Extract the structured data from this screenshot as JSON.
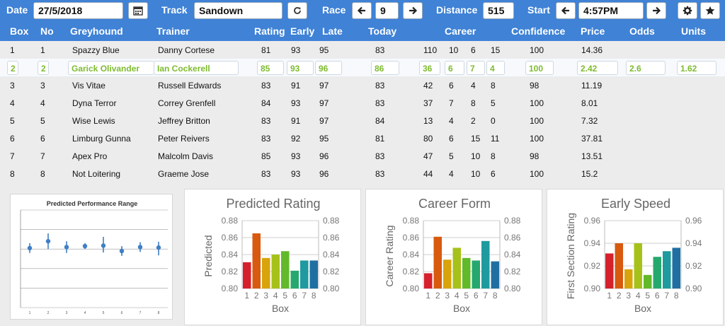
{
  "toolbar": {
    "date_label": "Date",
    "date_value": "27/5/2018",
    "track_label": "Track",
    "track_value": "Sandown",
    "race_label": "Race",
    "race_value": "9",
    "distance_label": "Distance",
    "distance_value": "515",
    "start_label": "Start",
    "start_value": "4:57PM"
  },
  "columns": [
    "Box",
    "No",
    "Greyhound",
    "Trainer",
    "Rating",
    "Early",
    "Late",
    "Today",
    "Career",
    "Confidence",
    "Price",
    "Odds",
    "Units"
  ],
  "rows": [
    {
      "box": "1",
      "no": "1",
      "dog": "Spazzy Blue",
      "trainer": "Danny Cortese",
      "rating": "81",
      "early": "93",
      "late": "95",
      "today": "83",
      "c1": "110",
      "c2": "10",
      "c3": "6",
      "c4": "15",
      "conf": "100",
      "price": "14.36",
      "odds": "",
      "units": ""
    },
    {
      "box": "2",
      "no": "2",
      "dog": "Garick Olivander",
      "trainer": "Ian Cockerell",
      "rating": "85",
      "early": "93",
      "late": "96",
      "today": "86",
      "c1": "36",
      "c2": "6",
      "c3": "7",
      "c4": "4",
      "conf": "100",
      "price": "2.42",
      "odds": "2.6",
      "units": "1.62"
    },
    {
      "box": "3",
      "no": "3",
      "dog": "Vis Vitae",
      "trainer": "Russell Edwards",
      "rating": "83",
      "early": "91",
      "late": "97",
      "today": "83",
      "c1": "42",
      "c2": "6",
      "c3": "4",
      "c4": "8",
      "conf": "98",
      "price": "11.19",
      "odds": "",
      "units": ""
    },
    {
      "box": "4",
      "no": "4",
      "dog": "Dyna Terror",
      "trainer": "Correy Grenfell",
      "rating": "84",
      "early": "93",
      "late": "97",
      "today": "83",
      "c1": "37",
      "c2": "7",
      "c3": "8",
      "c4": "5",
      "conf": "100",
      "price": "8.01",
      "odds": "",
      "units": ""
    },
    {
      "box": "5",
      "no": "5",
      "dog": "Wise Lewis",
      "trainer": "Jeffrey Britton",
      "rating": "83",
      "early": "91",
      "late": "97",
      "today": "84",
      "c1": "13",
      "c2": "4",
      "c3": "2",
      "c4": "0",
      "conf": "100",
      "price": "7.32",
      "odds": "",
      "units": ""
    },
    {
      "box": "6",
      "no": "6",
      "dog": "Limburg Gunna",
      "trainer": "Peter Reivers",
      "rating": "83",
      "early": "92",
      "late": "95",
      "today": "81",
      "c1": "80",
      "c2": "6",
      "c3": "15",
      "c4": "11",
      "conf": "100",
      "price": "37.81",
      "odds": "",
      "units": ""
    },
    {
      "box": "7",
      "no": "7",
      "dog": "Apex Pro",
      "trainer": "Malcolm Davis",
      "rating": "85",
      "early": "93",
      "late": "96",
      "today": "83",
      "c1": "47",
      "c2": "5",
      "c3": "10",
      "c4": "8",
      "conf": "98",
      "price": "13.51",
      "odds": "",
      "units": ""
    },
    {
      "box": "8",
      "no": "8",
      "dog": "Not Loitering",
      "trainer": "Graeme Jose",
      "rating": "83",
      "early": "93",
      "late": "96",
      "today": "83",
      "c1": "44",
      "c2": "4",
      "c3": "10",
      "c4": "6",
      "conf": "100",
      "price": "15.2",
      "odds": "",
      "units": ""
    }
  ],
  "selected_row": 1,
  "colors": {
    "accent": "#3f82d6",
    "selected_text": "#7dbb2e"
  },
  "icons": {
    "calendar": "calendar-icon",
    "refresh": "refresh-icon",
    "prev": "arrow-left-icon",
    "next": "arrow-right-icon",
    "settings": "gear-icon",
    "favorite": "star-icon"
  },
  "chart_data": [
    {
      "type": "scatter",
      "title": "Predicted Performance Range",
      "categories": [
        "1",
        "2",
        "3",
        "4",
        "5",
        "6",
        "7",
        "8"
      ],
      "values": [
        0.61,
        0.68,
        0.62,
        0.63,
        0.635,
        0.58,
        0.62,
        0.615
      ],
      "err_low": [
        0.05,
        0.08,
        0.06,
        0.03,
        0.07,
        0.05,
        0.05,
        0.08
      ],
      "err_high": [
        0.05,
        0.08,
        0.06,
        0.03,
        0.09,
        0.05,
        0.05,
        0.06
      ],
      "ylim": [
        0,
        1
      ],
      "grid": true
    },
    {
      "type": "bar",
      "title": "Predicted Rating",
      "xlabel": "Box",
      "ylabel": "Predicted",
      "categories": [
        "1",
        "2",
        "3",
        "4",
        "5",
        "6",
        "7",
        "8"
      ],
      "values": [
        0.831,
        0.865,
        0.836,
        0.84,
        0.844,
        0.821,
        0.833,
        0.833
      ],
      "ylim": [
        0.8,
        0.88
      ],
      "ticks": [
        "0.80",
        "0.82",
        "0.84",
        "0.86",
        "0.88"
      ]
    },
    {
      "type": "bar",
      "title": "Career Form",
      "xlabel": "Box",
      "ylabel": "Career Rating",
      "categories": [
        "1",
        "2",
        "3",
        "4",
        "5",
        "6",
        "7",
        "8"
      ],
      "values": [
        0.818,
        0.861,
        0.834,
        0.848,
        0.836,
        0.833,
        0.856,
        0.832
      ],
      "ylim": [
        0.8,
        0.88
      ],
      "ticks": [
        "0.80",
        "0.82",
        "0.84",
        "0.86",
        "0.88"
      ]
    },
    {
      "type": "bar",
      "title": "Early Speed",
      "xlabel": "Box",
      "ylabel": "First Section Rating",
      "categories": [
        "1",
        "2",
        "3",
        "4",
        "5",
        "6",
        "7",
        "8"
      ],
      "values": [
        0.931,
        0.94,
        0.917,
        0.94,
        0.912,
        0.928,
        0.933,
        0.936
      ],
      "ylim": [
        0.9,
        0.96
      ],
      "ticks": [
        "0.90",
        "0.92",
        "0.94",
        "0.96"
      ]
    }
  ]
}
